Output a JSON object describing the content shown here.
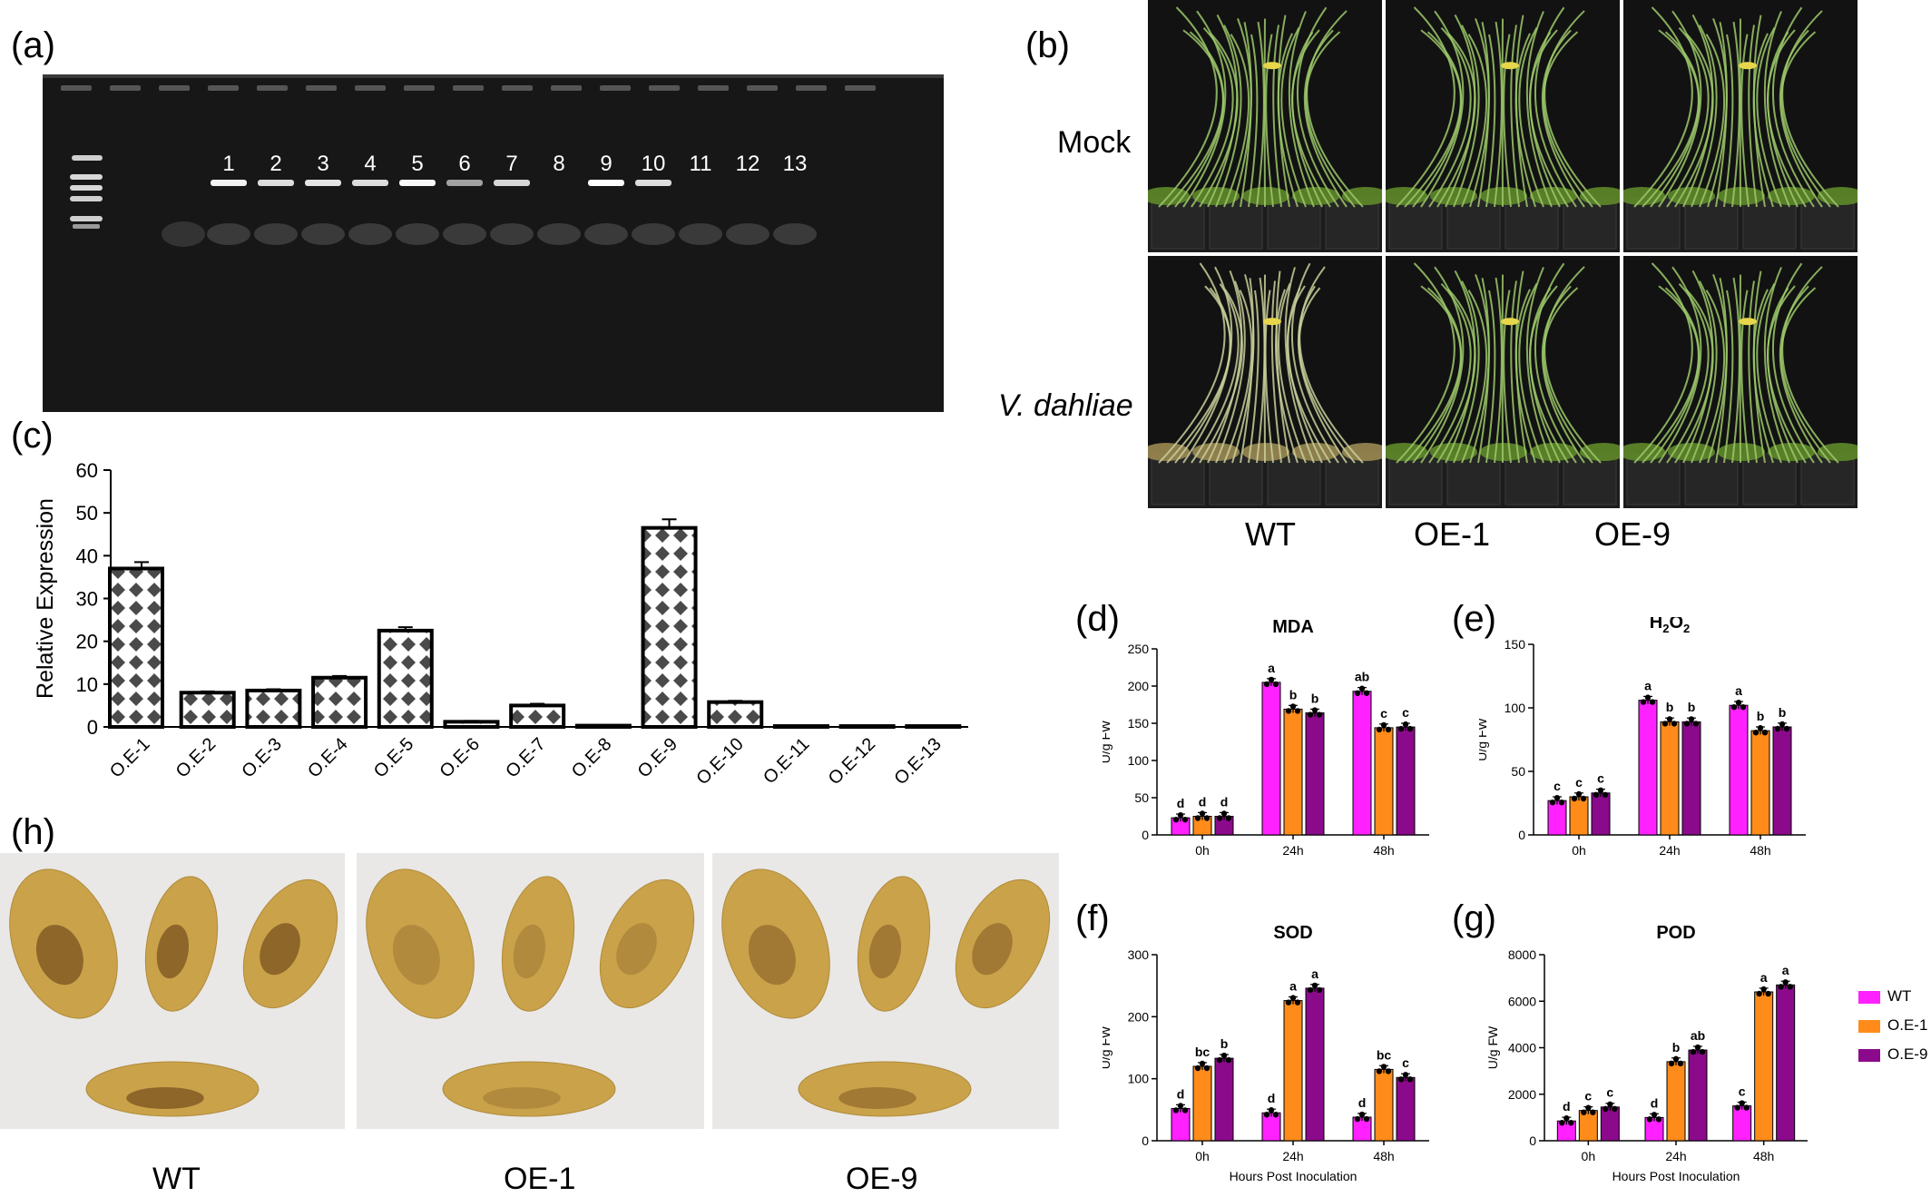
{
  "panels": {
    "a": {
      "label": "(a)",
      "lane_numbers": [
        "1",
        "2",
        "3",
        "4",
        "5",
        "6",
        "7",
        "8",
        "9",
        "10",
        "11",
        "12",
        "13"
      ],
      "band_strength": [
        0.9,
        0.75,
        0.8,
        0.75,
        0.95,
        0.3,
        0.7,
        0.0,
        1.0,
        0.75,
        0.0,
        0.0,
        0.0
      ]
    },
    "b": {
      "label": "(b)",
      "rows": [
        "Mock",
        "V. dahliae"
      ],
      "columns": [
        "WT",
        "OE-1",
        "OE-9"
      ]
    },
    "c": {
      "label": "(c)"
    },
    "d": {
      "label": "(d)"
    },
    "e": {
      "label": "(e)"
    },
    "f": {
      "label": "(f)"
    },
    "g": {
      "label": "(g)"
    },
    "h": {
      "label": "(h)",
      "columns": [
        "WT",
        "OE-1",
        "OE-9"
      ]
    },
    "legend": {
      "entries": [
        {
          "name": "WT",
          "color": "#ff21ff"
        },
        {
          "name": "O.E-1",
          "color": "#ff8c1a"
        },
        {
          "name": "O.E-9",
          "color": "#8b0a8b"
        }
      ]
    }
  },
  "chart_data": [
    {
      "id": "c",
      "type": "bar",
      "categories": [
        "O.E-1",
        "O.E-2",
        "O.E-3",
        "O.E-4",
        "O.E-5",
        "O.E-6",
        "O.E-7",
        "O.E-8",
        "O.E-9",
        "O.E-10",
        "O.E-11",
        "O.E-12",
        "O.E-13"
      ],
      "values": [
        37,
        8,
        8.5,
        11.5,
        22.5,
        1.2,
        5,
        0.3,
        46.5,
        5.8,
        0.2,
        0.2,
        0.2
      ],
      "errors": [
        1.5,
        0.3,
        0.3,
        0.4,
        0.8,
        0.2,
        0.4,
        0.1,
        2.0,
        0.3,
        0.05,
        0.05,
        0.05
      ],
      "ylabel": "Relative Expression",
      "xlabel": "",
      "ylim": [
        0,
        60
      ],
      "yticks": [
        "0",
        "10",
        "20",
        "30",
        "40",
        "50",
        "60"
      ]
    },
    {
      "id": "d",
      "type": "bar",
      "title": "MDA",
      "ylabel": "U/g FW",
      "xlabel": "",
      "categories": [
        "0h",
        "24h",
        "48h"
      ],
      "series": [
        {
          "name": "WT",
          "values": [
            23,
            205,
            193
          ]
        },
        {
          "name": "O.E-1",
          "values": [
            25,
            169,
            144
          ]
        },
        {
          "name": "O.E-9",
          "values": [
            25,
            164,
            145
          ]
        }
      ],
      "letters": [
        [
          "d",
          "d",
          "d"
        ],
        [
          "a",
          "b",
          "b"
        ],
        [
          "ab",
          "c",
          "c"
        ]
      ],
      "ylim": [
        0,
        250
      ],
      "yticks": [
        "0",
        "50",
        "100",
        "150",
        "200",
        "250"
      ]
    },
    {
      "id": "e",
      "type": "bar",
      "title": "H2O2",
      "ylabel": "U/g FW",
      "xlabel": "",
      "categories": [
        "0h",
        "24h",
        "48h"
      ],
      "series": [
        {
          "name": "WT",
          "values": [
            27,
            106,
            102
          ]
        },
        {
          "name": "O.E-1",
          "values": [
            30,
            89,
            82
          ]
        },
        {
          "name": "O.E-9",
          "values": [
            33,
            89,
            85
          ]
        }
      ],
      "letters": [
        [
          "c",
          "c",
          "c"
        ],
        [
          "a",
          "b",
          "b"
        ],
        [
          "a",
          "b",
          "b"
        ]
      ],
      "ylim": [
        0,
        150
      ],
      "yticks": [
        "0",
        "50",
        "100",
        "150"
      ]
    },
    {
      "id": "f",
      "type": "bar",
      "title": "SOD",
      "ylabel": "U/g FW",
      "xlabel": "Hours Post Inoculation",
      "categories": [
        "0h",
        "24h",
        "48h"
      ],
      "series": [
        {
          "name": "WT",
          "values": [
            52,
            45,
            38
          ]
        },
        {
          "name": "O.E-1",
          "values": [
            120,
            226,
            115
          ]
        },
        {
          "name": "O.E-9",
          "values": [
            133,
            246,
            102
          ]
        }
      ],
      "letters": [
        [
          "d",
          "bc",
          "b"
        ],
        [
          "d",
          "a",
          "a"
        ],
        [
          "d",
          "bc",
          "c"
        ]
      ],
      "ylim": [
        0,
        300
      ],
      "yticks": [
        "0",
        "100",
        "200",
        "300"
      ]
    },
    {
      "id": "g",
      "type": "bar",
      "title": "POD",
      "ylabel": "U/g FW",
      "xlabel": "Hours Post Inoculation",
      "categories": [
        "0h",
        "24h",
        "48h"
      ],
      "series": [
        {
          "name": "WT",
          "values": [
            850,
            1000,
            1500
          ]
        },
        {
          "name": "O.E-1",
          "values": [
            1300,
            3400,
            6400
          ]
        },
        {
          "name": "O.E-9",
          "values": [
            1450,
            3900,
            6700
          ]
        }
      ],
      "letters": [
        [
          "d",
          "c",
          "c"
        ],
        [
          "d",
          "b",
          "ab"
        ],
        [
          "c",
          "a",
          "a"
        ]
      ],
      "ylim": [
        0,
        8000
      ],
      "yticks": [
        "0",
        "2000",
        "4000",
        "6000",
        "8000"
      ]
    }
  ]
}
